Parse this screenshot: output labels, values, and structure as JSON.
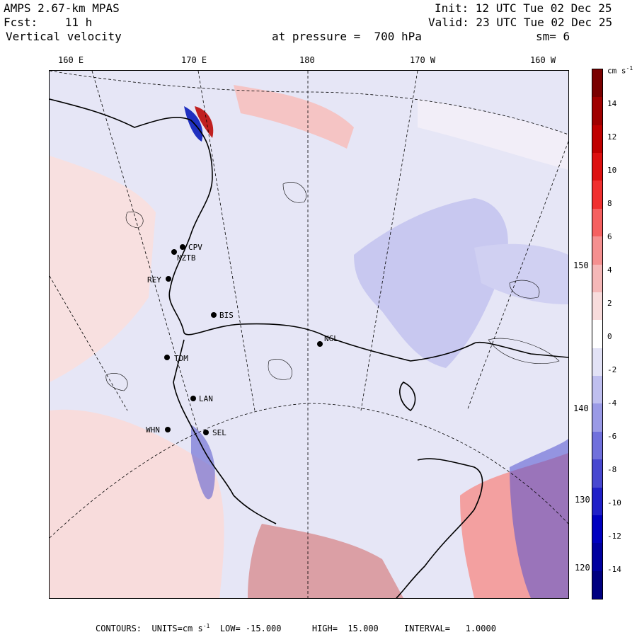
{
  "header": {
    "model": "AMPS 2.67-km MPAS",
    "fcst": "Fcst:    11 h",
    "field": "Vertical velocity",
    "init": "Init: 12 UTC Tue 02 Dec 25",
    "valid": "Valid: 23 UTC Tue 02 Dec 25",
    "level": "at pressure =  700 hPa",
    "smooth": "sm= 6"
  },
  "lon_labels": [
    "160 E",
    "170 E",
    "180",
    "170 W",
    "160 W"
  ],
  "lat_labels": [
    "150 W",
    "140 W",
    "130 W",
    "120 W"
  ],
  "colorbar": {
    "units": "cm s",
    "units_exp": "-1",
    "ticks": [
      "14",
      "12",
      "10",
      "8",
      "6",
      "4",
      "2",
      "0",
      "-2",
      "-4",
      "-6",
      "-8",
      "-10",
      "-12",
      "-14"
    ],
    "colors": [
      "#7a0000",
      "#a00000",
      "#c00000",
      "#dd1010",
      "#f03030",
      "#f56060",
      "#f59090",
      "#f5b8b8",
      "#f8dcdc",
      "#ffffff",
      "#e2e2f6",
      "#bfbfef",
      "#9a9ae6",
      "#7070dc",
      "#4848d0",
      "#2020c8",
      "#0000c0",
      "#0000a0",
      "#000080"
    ]
  },
  "stations": [
    {
      "code": "CPV"
    },
    {
      "code": "NZTB"
    },
    {
      "code": "REY"
    },
    {
      "code": "BIS"
    },
    {
      "code": "NGL"
    },
    {
      "code": "TDM"
    },
    {
      "code": "LAN"
    },
    {
      "code": "WHN"
    },
    {
      "code": "SEL"
    }
  ],
  "footer": {
    "text": "CONTOURS:  UNITS=cm s",
    "exp": "-1",
    "rest": "  LOW= -15.000      HIGH=  15.000     INTERVAL=   1.0000"
  }
}
